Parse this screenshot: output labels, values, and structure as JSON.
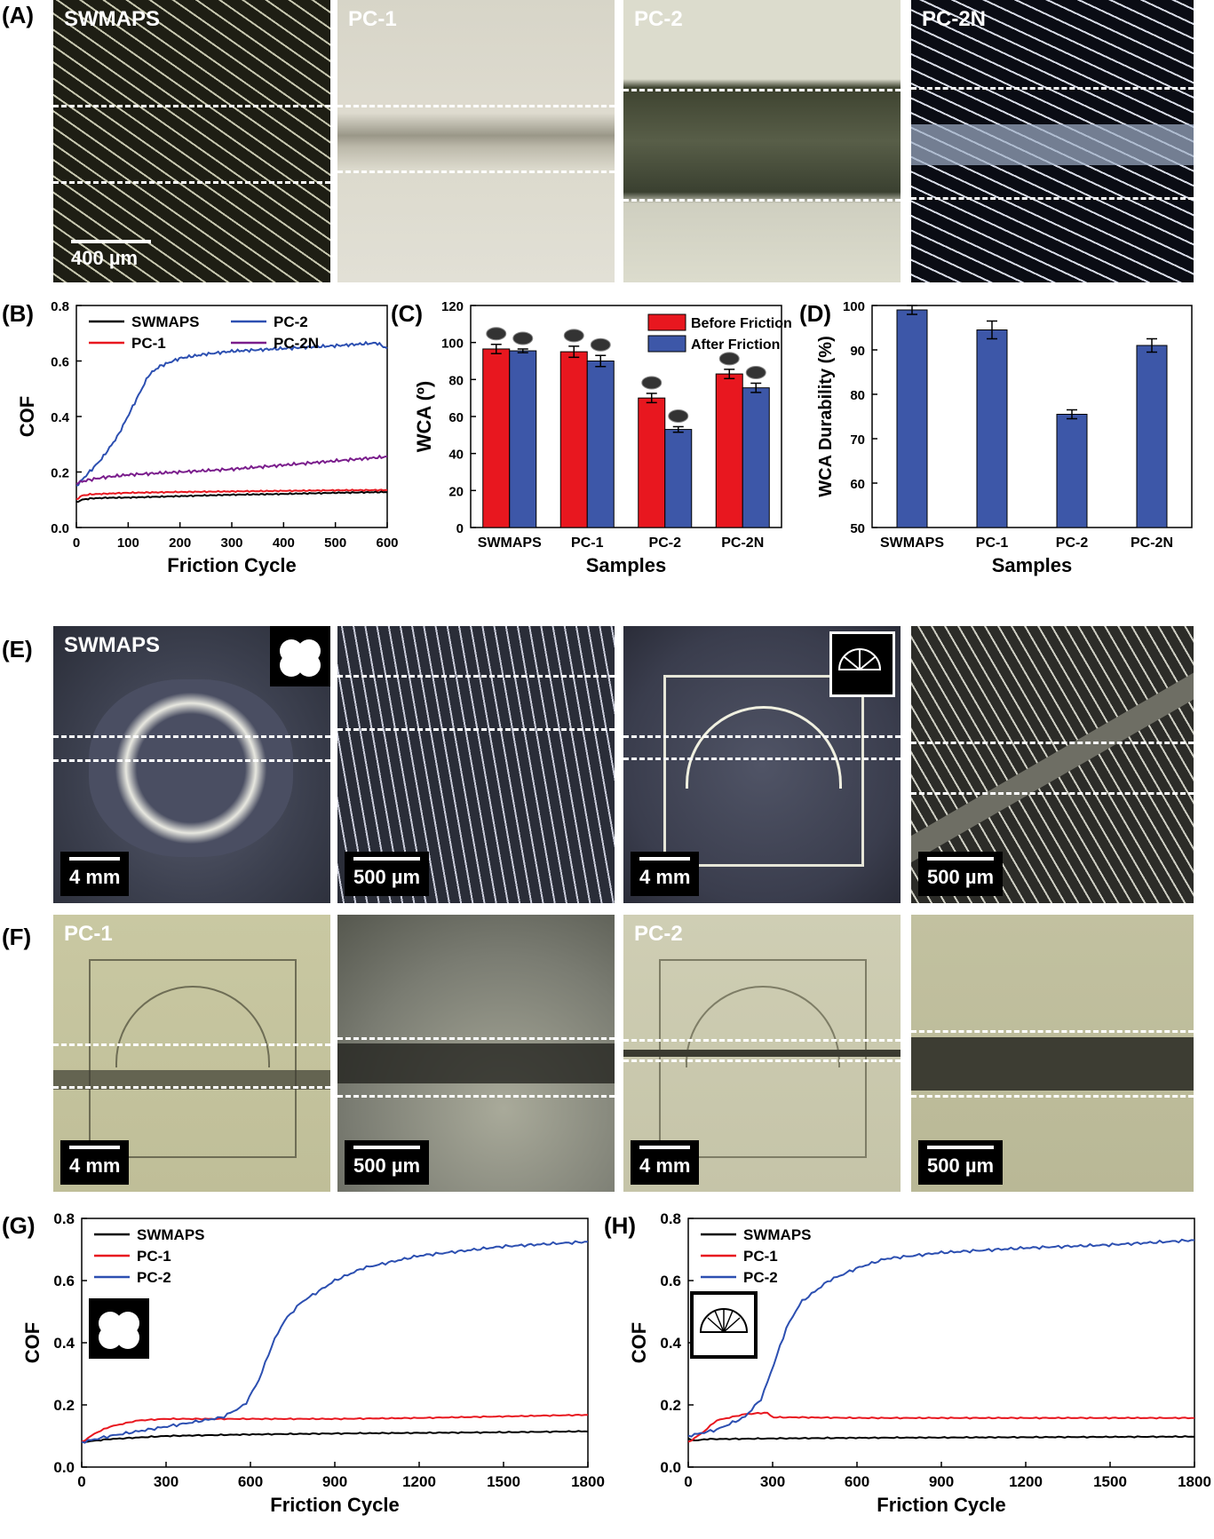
{
  "panels": {
    "A": {
      "label": "(A)",
      "images": [
        {
          "label": "SWMAPS",
          "scalebar": "400 µm"
        },
        {
          "label": "PC-1"
        },
        {
          "label": "PC-2"
        },
        {
          "label": "PC-2N"
        }
      ]
    },
    "B": {
      "label": "(B)"
    },
    "C": {
      "label": "(C)"
    },
    "D": {
      "label": "(D)"
    },
    "E": {
      "label": "(E)",
      "images": [
        {
          "label": "SWMAPS",
          "scalebar": "4 mm"
        },
        {
          "label": "",
          "scalebar": "500 µm"
        },
        {
          "label": "",
          "scalebar": "4 mm"
        },
        {
          "label": "",
          "scalebar": "500 µm"
        }
      ]
    },
    "F": {
      "label": "(F)",
      "images": [
        {
          "label": "PC-1",
          "scalebar": "4 mm"
        },
        {
          "label": "",
          "scalebar": "500 µm"
        },
        {
          "label": "PC-2",
          "scalebar": "4 mm"
        },
        {
          "label": "",
          "scalebar": "500 µm"
        }
      ]
    },
    "G": {
      "label": "(G)"
    },
    "H": {
      "label": "(H)"
    }
  },
  "colors": {
    "SWMAPS": "#000000",
    "PC-1": "#e8171f",
    "PC-2": "#2c4fb1",
    "PC-2N": "#7a1d8c",
    "before_bar": "#e8171f",
    "after_bar": "#3d57a8"
  },
  "chart_data": [
    {
      "id": "B",
      "type": "line",
      "xlabel": "Friction Cycle",
      "ylabel": "COF",
      "xlim": [
        0,
        600
      ],
      "ylim": [
        0,
        0.8
      ],
      "xticks": [
        "0",
        "100",
        "200",
        "300",
        "400",
        "500",
        "600"
      ],
      "yticks": [
        "0.0",
        "0.2",
        "0.4",
        "0.6",
        "0.8"
      ],
      "legend_entries": [
        "SWMAPS",
        "PC-2",
        "PC-1",
        "PC-2N"
      ],
      "legend_placement": "top",
      "series": [
        {
          "name": "SWMAPS",
          "x": [
            0,
            10,
            30,
            60,
            100,
            200,
            300,
            400,
            500,
            600
          ],
          "y": [
            0.09,
            0.1,
            0.105,
            0.107,
            0.108,
            0.113,
            0.118,
            0.121,
            0.125,
            0.128
          ]
        },
        {
          "name": "PC-1",
          "x": [
            0,
            10,
            30,
            60,
            100,
            200,
            300,
            400,
            500,
            600
          ],
          "y": [
            0.1,
            0.115,
            0.12,
            0.122,
            0.125,
            0.128,
            0.13,
            0.132,
            0.134,
            0.135
          ]
        },
        {
          "name": "PC-2",
          "x": [
            0,
            20,
            50,
            80,
            110,
            140,
            160,
            200,
            250,
            300,
            400,
            500,
            580,
            600
          ],
          "y": [
            0.15,
            0.19,
            0.25,
            0.33,
            0.44,
            0.55,
            0.58,
            0.61,
            0.625,
            0.635,
            0.645,
            0.655,
            0.665,
            0.645
          ]
        },
        {
          "name": "PC-2N",
          "x": [
            0,
            20,
            50,
            100,
            150,
            200,
            300,
            400,
            500,
            600
          ],
          "y": [
            0.16,
            0.17,
            0.18,
            0.19,
            0.195,
            0.2,
            0.21,
            0.225,
            0.24,
            0.255
          ]
        }
      ]
    },
    {
      "id": "C",
      "type": "bar",
      "xlabel": "Samples",
      "ylabel": "WCA (º)",
      "ylim": [
        0,
        120
      ],
      "yticks": [
        "0",
        "20",
        "40",
        "60",
        "80",
        "100",
        "120"
      ],
      "categories": [
        "SWMAPS",
        "PC-1",
        "PC-2",
        "PC-2N"
      ],
      "legend_placement": "top-right",
      "series": [
        {
          "name": "Before Friction",
          "values": [
            96.5,
            95,
            70,
            83
          ],
          "errors": [
            2.5,
            3,
            2.5,
            2.5
          ]
        },
        {
          "name": "After Friction",
          "values": [
            95.5,
            90,
            53,
            75.5
          ],
          "errors": [
            1,
            3,
            1.5,
            2.5
          ]
        }
      ]
    },
    {
      "id": "D",
      "type": "bar",
      "xlabel": "Samples",
      "ylabel": "WCA Durability (%)",
      "ylim": [
        50,
        100
      ],
      "yticks": [
        "50",
        "60",
        "70",
        "80",
        "90",
        "100"
      ],
      "categories": [
        "SWMAPS",
        "PC-1",
        "PC-2",
        "PC-2N"
      ],
      "values": [
        99,
        94.5,
        75.5,
        91
      ],
      "errors": [
        1,
        2,
        1,
        1.5
      ]
    },
    {
      "id": "G",
      "type": "line",
      "xlabel": "Friction Cycle",
      "ylabel": "COF",
      "xlim": [
        0,
        1800
      ],
      "ylim": [
        0,
        0.8
      ],
      "xticks": [
        "0",
        "300",
        "600",
        "900",
        "1200",
        "1500",
        "1800"
      ],
      "yticks": [
        "0.0",
        "0.2",
        "0.4",
        "0.6",
        "0.8"
      ],
      "legend_entries": [
        "SWMAPS",
        "PC-1",
        "PC-2"
      ],
      "legend_placement": "top-left",
      "series": [
        {
          "name": "SWMAPS",
          "x": [
            0,
            100,
            300,
            600,
            900,
            1200,
            1500,
            1800
          ],
          "y": [
            0.08,
            0.09,
            0.1,
            0.105,
            0.108,
            0.11,
            0.112,
            0.115
          ]
        },
        {
          "name": "PC-1",
          "x": [
            0,
            50,
            100,
            200,
            300,
            600,
            900,
            1200,
            1500,
            1800
          ],
          "y": [
            0.08,
            0.11,
            0.13,
            0.15,
            0.155,
            0.155,
            0.155,
            0.158,
            0.163,
            0.168
          ]
        },
        {
          "name": "PC-2",
          "x": [
            0,
            100,
            300,
            500,
            580,
            630,
            680,
            720,
            780,
            850,
            900,
            1000,
            1200,
            1500,
            1800
          ],
          "y": [
            0.08,
            0.1,
            0.13,
            0.16,
            0.2,
            0.28,
            0.4,
            0.47,
            0.53,
            0.57,
            0.6,
            0.64,
            0.68,
            0.71,
            0.725
          ]
        }
      ]
    },
    {
      "id": "H",
      "type": "line",
      "xlabel": "Friction Cycle",
      "ylabel": "COF",
      "xlim": [
        0,
        1800
      ],
      "ylim": [
        0,
        0.8
      ],
      "xticks": [
        "0",
        "300",
        "600",
        "900",
        "1200",
        "1500",
        "1800"
      ],
      "yticks": [
        "0.0",
        "0.2",
        "0.4",
        "0.6",
        "0.8"
      ],
      "legend_entries": [
        "SWMAPS",
        "PC-1",
        "PC-2"
      ],
      "legend_placement": "top-left",
      "series": [
        {
          "name": "SWMAPS",
          "x": [
            0,
            30,
            60,
            100,
            300,
            600,
            900,
            1200,
            1500,
            1800
          ],
          "y": [
            0.09,
            0.085,
            0.09,
            0.09,
            0.092,
            0.094,
            0.095,
            0.096,
            0.097,
            0.098
          ]
        },
        {
          "name": "PC-1",
          "x": [
            0,
            50,
            100,
            200,
            280,
            300,
            400,
            600,
            900,
            1200,
            1500,
            1800
          ],
          "y": [
            0.08,
            0.11,
            0.15,
            0.17,
            0.175,
            0.16,
            0.16,
            0.158,
            0.158,
            0.158,
            0.158,
            0.158
          ]
        },
        {
          "name": "PC-2",
          "x": [
            0,
            100,
            200,
            260,
            300,
            350,
            400,
            500,
            600,
            700,
            900,
            1200,
            1500,
            1800
          ],
          "y": [
            0.1,
            0.12,
            0.16,
            0.22,
            0.32,
            0.45,
            0.53,
            0.6,
            0.64,
            0.67,
            0.69,
            0.705,
            0.715,
            0.73
          ]
        }
      ]
    }
  ]
}
